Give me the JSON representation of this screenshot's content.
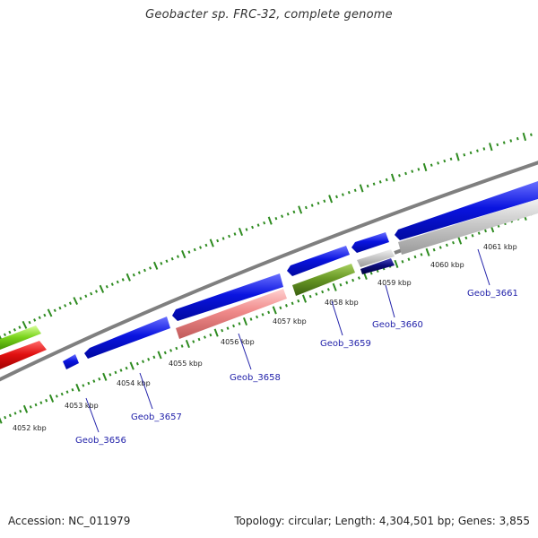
{
  "title": "Geobacter sp. FRC-32, complete genome",
  "footer": {
    "accession": "Accession: NC_011979",
    "stats": "Topology: circular; Length: 4,304,501 bp; Genes: 3,855"
  },
  "colors": {
    "backbone": "#7f7f7f",
    "ticks": "#2e8b20",
    "gene_blue": "#0a14e0",
    "gene_red": "#e01010",
    "gene_lime": "#7ad41c",
    "gene_pink": "#f08a8a",
    "gene_olive": "#6a9a26",
    "gene_navy": "#0c0c7a",
    "gene_gray": "#c8c8c8",
    "label_blue": "#2222aa"
  },
  "kbp_labels": [
    "4052 kbp",
    "4053 kbp",
    "4054 kbp",
    "4055 kbp",
    "4056 kbp",
    "4057 kbp",
    "4058 kbp",
    "4059 kbp",
    "4060 kbp",
    "4061 kbp"
  ],
  "gene_labels": [
    "Geob_3656",
    "Geob_3657",
    "Geob_3658",
    "Geob_3659",
    "Geob_3660",
    "Geob_3661"
  ]
}
